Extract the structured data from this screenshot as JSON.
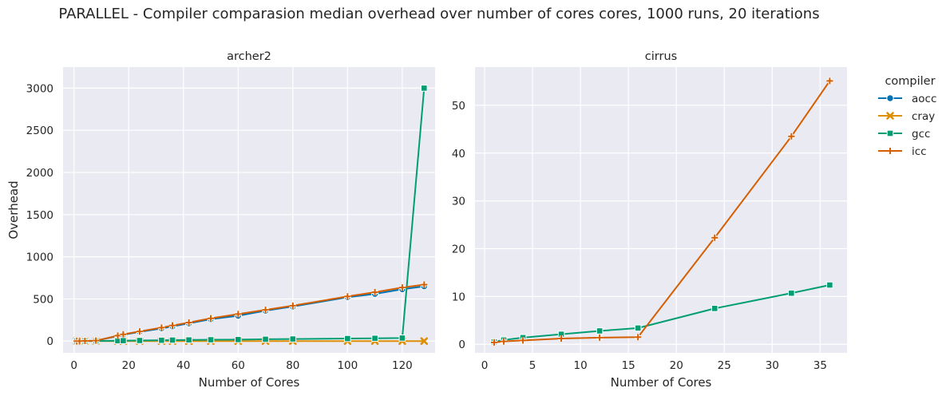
{
  "figure_title": "PARALLEL - Compiler comparasion median overhead over number of cores cores, 1000 runs, 20 iterations",
  "legend": {
    "title": "compiler",
    "placement": "outside-right-top",
    "entries": [
      {
        "name": "aocc",
        "color": "#0173b2",
        "marker": "circle"
      },
      {
        "name": "cray",
        "color": "#de8f05",
        "marker": "x"
      },
      {
        "name": "gcc",
        "color": "#029e73",
        "marker": "square"
      },
      {
        "name": "icc",
        "color": "#d55e00",
        "marker": "plus"
      }
    ]
  },
  "chart_data": [
    {
      "type": "line",
      "title": "archer2",
      "xlabel": "Number of Cores",
      "ylabel": "Overhead",
      "xlim": [
        -4,
        132
      ],
      "ylim": [
        -140,
        3250
      ],
      "xticks": [
        0,
        20,
        40,
        60,
        80,
        100,
        120
      ],
      "yticks": [
        0,
        500,
        1000,
        1500,
        2000,
        2500,
        3000
      ],
      "grid": true,
      "series": [
        {
          "name": "aocc",
          "color": "#0173b2",
          "marker": "circle",
          "x": [
            1,
            2,
            4,
            8,
            16,
            18,
            24,
            32,
            36,
            42,
            50,
            60,
            70,
            80,
            100,
            110,
            120,
            128
          ],
          "y": [
            0,
            0,
            2,
            5,
            60,
            75,
            110,
            150,
            175,
            210,
            260,
            300,
            360,
            410,
            520,
            560,
            615,
            650
          ]
        },
        {
          "name": "cray",
          "color": "#de8f05",
          "marker": "x",
          "x": [
            1,
            2,
            4,
            8,
            16,
            18,
            24,
            32,
            36,
            42,
            50,
            60,
            70,
            80,
            100,
            110,
            120,
            128
          ],
          "y": [
            0,
            0,
            0,
            0,
            0,
            0,
            0,
            0,
            0,
            0,
            0,
            0,
            0,
            0,
            0,
            0,
            0,
            0
          ]
        },
        {
          "name": "gcc",
          "color": "#029e73",
          "marker": "square",
          "x": [
            1,
            2,
            4,
            8,
            16,
            18,
            24,
            32,
            36,
            42,
            50,
            60,
            70,
            80,
            100,
            110,
            120,
            128
          ],
          "y": [
            0,
            0,
            1,
            2,
            4,
            5,
            7,
            10,
            12,
            14,
            16,
            18,
            22,
            25,
            30,
            33,
            36,
            3000
          ]
        },
        {
          "name": "icc",
          "color": "#d55e00",
          "marker": "plus",
          "x": [
            1,
            2,
            4,
            8,
            16,
            18,
            24,
            32,
            36,
            42,
            50,
            60,
            70,
            80,
            100,
            110,
            120,
            128
          ],
          "y": [
            0,
            0,
            2,
            5,
            65,
            80,
            115,
            160,
            185,
            220,
            270,
            320,
            370,
            420,
            530,
            580,
            635,
            670
          ]
        }
      ]
    },
    {
      "type": "line",
      "title": "cirrus",
      "xlabel": "Number of Cores",
      "ylabel": "",
      "xlim": [
        -1,
        37.8
      ],
      "ylim": [
        -1.8,
        58
      ],
      "xticks": [
        0,
        5,
        10,
        15,
        20,
        25,
        30,
        35
      ],
      "yticks": [
        0,
        10,
        20,
        30,
        40,
        50
      ],
      "grid": true,
      "series": [
        {
          "name": "gcc",
          "color": "#029e73",
          "marker": "square",
          "x": [
            1,
            2,
            4,
            8,
            12,
            16,
            24,
            32,
            36
          ],
          "y": [
            0.5,
            0.9,
            1.4,
            2.1,
            2.8,
            3.4,
            7.5,
            10.7,
            12.4
          ]
        },
        {
          "name": "icc",
          "color": "#d55e00",
          "marker": "plus",
          "x": [
            1,
            2,
            4,
            8,
            12,
            16,
            24,
            32,
            36
          ],
          "y": [
            0.4,
            0.6,
            0.8,
            1.2,
            1.4,
            1.5,
            22.3,
            43.5,
            55.1
          ]
        }
      ]
    }
  ]
}
